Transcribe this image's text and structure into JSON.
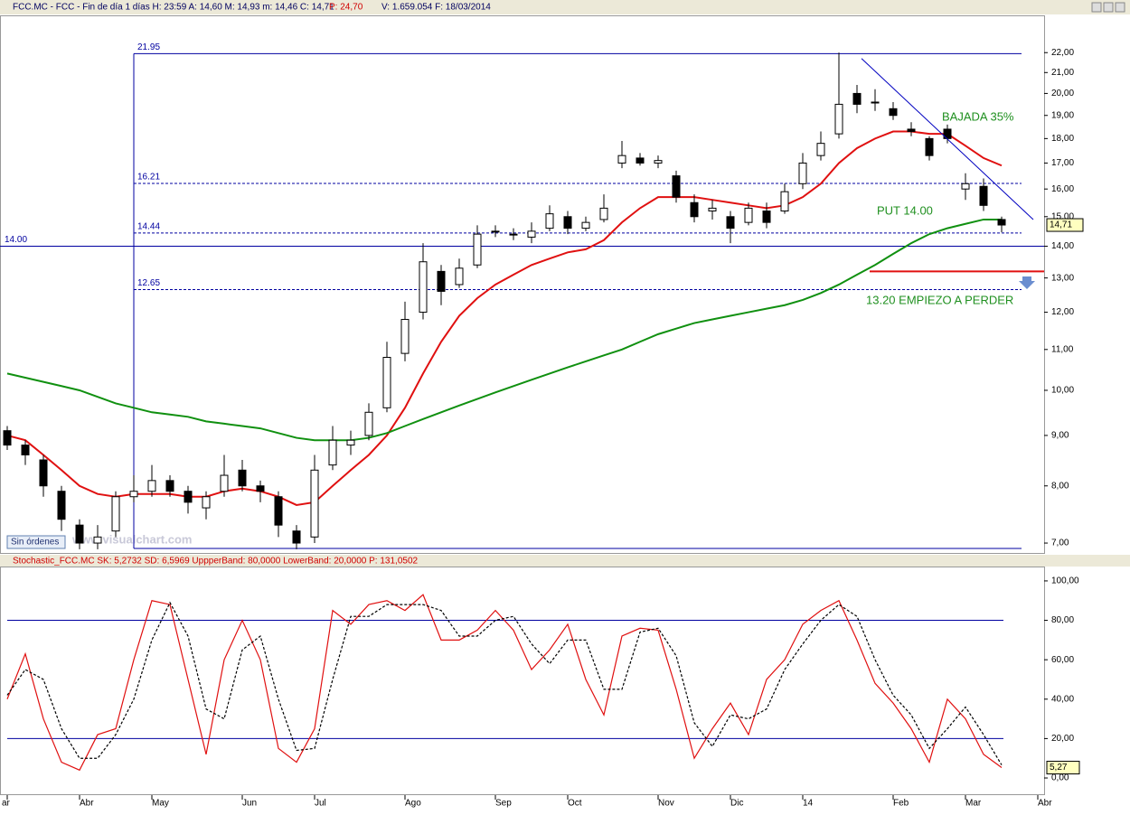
{
  "header": [
    "FCC.MC - FCC - Fin de día 1 días  H: 23:59  A: 14,60  M: 14,93  m: 14,46  C: 14,71",
    "P: 24,70",
    "V: 1.659.054  F: 18/03/2014"
  ],
  "status": "Sin órdenes",
  "watermark": "www.visualchart.com",
  "chart_data": [
    {
      "type": "candlestick",
      "log_scale": true,
      "ylim": [
        6.84,
        24
      ],
      "yticks": [
        {
          "value": 7,
          "label": "7,00"
        },
        {
          "value": 8,
          "label": "8,00"
        },
        {
          "value": 9,
          "label": "9,00"
        },
        {
          "value": 10,
          "label": "10,00"
        },
        {
          "value": 11,
          "label": "11,00"
        },
        {
          "value": 12,
          "label": "12,00"
        },
        {
          "value": 13,
          "label": "13,00"
        },
        {
          "value": 14,
          "label": "14,00"
        },
        {
          "value": 15,
          "label": "15,00"
        },
        {
          "value": 16,
          "label": "16,00"
        },
        {
          "value": 17,
          "label": "17,00"
        },
        {
          "value": 18,
          "label": "18,00"
        },
        {
          "value": 19,
          "label": "19,00"
        },
        {
          "value": 20,
          "label": "20,00"
        },
        {
          "value": 21,
          "label": "21,00"
        },
        {
          "value": 22,
          "label": "22,00"
        }
      ],
      "open": [
        9.1,
        8.8,
        8.5,
        7.9,
        7.3,
        7.0,
        7.2,
        7.8,
        7.9,
        8.1,
        7.9,
        7.6,
        7.9,
        8.3,
        8.0,
        7.8,
        7.2,
        7.1,
        8.4,
        8.8,
        9.0,
        9.6,
        10.9,
        12.0,
        13.2,
        12.8,
        13.4,
        14.5,
        14.4,
        14.3,
        14.6,
        15.0,
        14.6,
        14.9,
        17.0,
        17.2,
        17.0,
        16.5,
        15.5,
        15.2,
        15.0,
        14.8,
        15.2,
        15.2,
        16.2,
        17.3,
        18.2,
        20.0,
        19.6,
        19.3,
        18.4,
        18.0,
        18.4,
        16.0,
        16.1,
        14.9,
        null,
        null
      ],
      "high": [
        9.2,
        8.9,
        8.6,
        8.0,
        7.4,
        7.3,
        7.9,
        8.2,
        8.4,
        8.2,
        8.0,
        7.9,
        8.6,
        8.5,
        8.1,
        7.9,
        7.3,
        8.6,
        9.2,
        9.1,
        9.7,
        11.2,
        12.3,
        14.1,
        13.4,
        13.6,
        14.7,
        14.7,
        14.6,
        14.8,
        15.4,
        15.2,
        15.0,
        15.8,
        17.9,
        17.4,
        17.3,
        16.7,
        15.8,
        15.6,
        15.2,
        15.5,
        15.5,
        16.2,
        17.4,
        18.3,
        22.0,
        20.4,
        20.2,
        19.6,
        18.7,
        18.1,
        18.6,
        16.6,
        16.4,
        15.0,
        null,
        null
      ],
      "low": [
        8.7,
        8.4,
        7.8,
        7.2,
        6.9,
        6.9,
        7.1,
        7.7,
        7.8,
        7.8,
        7.5,
        7.4,
        7.8,
        7.9,
        7.7,
        7.1,
        6.9,
        7.0,
        8.3,
        8.6,
        8.9,
        9.5,
        10.7,
        11.8,
        12.2,
        12.7,
        13.3,
        14.3,
        14.2,
        14.1,
        14.5,
        14.4,
        14.5,
        14.8,
        16.8,
        16.9,
        16.8,
        15.5,
        14.8,
        14.9,
        14.1,
        14.7,
        14.6,
        15.1,
        16.0,
        17.1,
        18.0,
        19.1,
        19.2,
        18.8,
        18.1,
        17.1,
        17.8,
        15.6,
        15.2,
        14.46,
        null,
        null
      ],
      "close": [
        8.8,
        8.6,
        8.0,
        7.4,
        7.0,
        7.1,
        7.8,
        7.9,
        8.1,
        7.9,
        7.7,
        7.8,
        8.2,
        8.0,
        7.9,
        7.3,
        7.0,
        8.3,
        8.9,
        8.9,
        9.5,
        10.8,
        11.8,
        13.5,
        12.6,
        13.3,
        14.4,
        14.5,
        14.4,
        14.5,
        15.1,
        14.6,
        14.8,
        15.3,
        17.3,
        17.0,
        17.1,
        15.7,
        15.0,
        15.3,
        14.6,
        15.3,
        14.8,
        15.9,
        17.0,
        17.8,
        19.5,
        19.5,
        19.6,
        19.0,
        18.3,
        17.3,
        18.0,
        16.2,
        15.4,
        14.71,
        null,
        null
      ],
      "last_label": {
        "value": 14.71,
        "label": "14,71"
      },
      "series": [
        {
          "color": "#e01010",
          "values": [
            9.0,
            8.9,
            8.6,
            8.3,
            8.0,
            7.85,
            7.8,
            7.85,
            7.85,
            7.85,
            7.8,
            7.8,
            7.9,
            7.95,
            7.9,
            7.8,
            7.65,
            7.7,
            8.0,
            8.3,
            8.6,
            9.0,
            9.6,
            10.4,
            11.2,
            11.9,
            12.4,
            12.8,
            13.1,
            13.4,
            13.6,
            13.8,
            13.9,
            14.2,
            14.8,
            15.3,
            15.7,
            15.7,
            15.7,
            15.6,
            15.5,
            15.4,
            15.3,
            15.4,
            15.7,
            16.2,
            17.0,
            17.6,
            18.0,
            18.3,
            18.3,
            18.2,
            18.2,
            17.7,
            17.2,
            16.9,
            null,
            null
          ]
        },
        {
          "color": "#109010",
          "values": [
            10.4,
            10.3,
            10.2,
            10.1,
            10.0,
            9.85,
            9.7,
            9.6,
            9.5,
            9.45,
            9.4,
            9.3,
            9.25,
            9.2,
            9.15,
            9.05,
            8.95,
            8.9,
            8.9,
            8.9,
            8.95,
            9.05,
            9.2,
            9.35,
            9.5,
            9.65,
            9.8,
            9.95,
            10.1,
            10.25,
            10.4,
            10.55,
            10.7,
            10.85,
            11.0,
            11.2,
            11.4,
            11.55,
            11.7,
            11.8,
            11.9,
            12.0,
            12.1,
            12.2,
            12.35,
            12.55,
            12.8,
            13.1,
            13.4,
            13.75,
            14.1,
            14.4,
            14.6,
            14.75,
            14.9,
            14.9,
            null,
            null
          ]
        }
      ],
      "vline_x": 7,
      "levels": [
        {
          "value": 21.95,
          "label": "21.95",
          "dashed": false,
          "full_width": false
        },
        {
          "value": 16.21,
          "label": "16.21",
          "dashed": true,
          "full_width": false
        },
        {
          "value": 14.44,
          "label": "14.44",
          "dashed": true,
          "full_width": false
        },
        {
          "value": 14.0,
          "label": "14.00",
          "dashed": false,
          "full_width": true
        },
        {
          "value": 12.65,
          "label": "12.65",
          "dashed": true,
          "full_width": false
        }
      ],
      "trendline": {
        "x": [
          47.25,
          56.75
        ],
        "y": [
          21.7,
          14.9
        ]
      },
      "stop_line": {
        "value": 13.2,
        "x": [
          47.7,
          57.35
        ],
        "color": "#e01010"
      },
      "annotations": [
        "BAJADA 35%",
        "PUT 14.00",
        "13.20 EMPIEZO A PERDER"
      ]
    },
    {
      "type": "line",
      "title": "Stochastic_FCC.MC  SK: 5,2732  SD: 6,5969  UppperBand: 80,0000  LowerBand: 20,0000  P: 131,0502",
      "categories": [
        "ar",
        null,
        null,
        null,
        "Abr",
        null,
        null,
        null,
        "May",
        null,
        null,
        null,
        null,
        "Jun",
        null,
        null,
        null,
        "Jul",
        null,
        null,
        null,
        null,
        "Ago",
        null,
        null,
        null,
        null,
        "Sep",
        null,
        null,
        null,
        "Oct",
        null,
        null,
        null,
        null,
        "Nov",
        null,
        null,
        null,
        "Dic",
        null,
        null,
        null,
        "14",
        null,
        null,
        null,
        null,
        "Feb",
        null,
        null,
        null,
        "Mar",
        null,
        null,
        null,
        "Abr"
      ],
      "ylim": [
        -8.7,
        107.3
      ],
      "yticks": [
        {
          "value": 0,
          "label": "0,00"
        },
        {
          "value": 20,
          "label": "20,00"
        },
        {
          "value": 40,
          "label": "40,00"
        },
        {
          "value": 60,
          "label": "60,00"
        },
        {
          "value": 80,
          "label": "80,00"
        },
        {
          "value": 100,
          "label": "100,00"
        }
      ],
      "bands": [
        80,
        20
      ],
      "last_label": {
        "value": 5.27,
        "label": "5,27"
      },
      "series": [
        {
          "color": "#e01010",
          "dashed": false,
          "values": [
            40,
            63,
            30,
            8,
            4,
            22,
            25,
            60,
            90,
            88,
            50,
            12,
            60,
            80,
            60,
            15,
            8,
            25,
            85,
            78,
            88,
            90,
            85,
            93,
            70,
            70,
            75,
            85,
            75,
            55,
            65,
            78,
            50,
            32,
            72,
            76,
            75,
            45,
            10,
            25,
            38,
            22,
            50,
            60,
            78,
            85,
            90,
            70,
            48,
            38,
            25,
            8,
            40,
            30,
            12,
            5.27,
            null,
            null
          ]
        },
        {
          "color": "#000000",
          "dashed": true,
          "values": [
            42,
            55,
            50,
            25,
            10,
            10,
            22,
            40,
            70,
            89,
            72,
            35,
            30,
            65,
            72,
            40,
            14,
            15,
            50,
            82,
            82,
            88,
            88,
            88,
            85,
            72,
            72,
            80,
            82,
            68,
            58,
            70,
            70,
            45,
            45,
            74,
            76,
            62,
            28,
            16,
            32,
            30,
            35,
            55,
            68,
            80,
            88,
            82,
            60,
            42,
            32,
            15,
            25,
            36,
            22,
            6.6,
            null,
            null
          ]
        }
      ]
    }
  ]
}
